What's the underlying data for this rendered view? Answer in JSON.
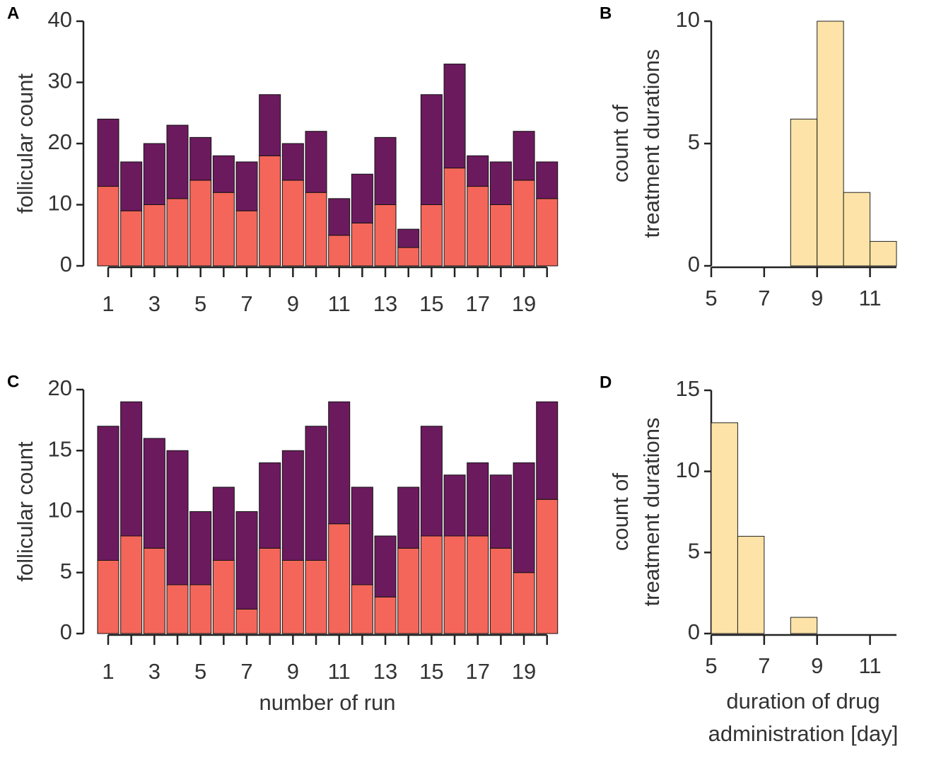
{
  "chart_data": [
    {
      "type": "bar",
      "label": "A",
      "ylabel": "follicular count",
      "stacked": true,
      "categories": [
        "1",
        null,
        "3",
        null,
        "5",
        null,
        "7",
        null,
        "9",
        null,
        "11",
        null,
        "13",
        null,
        "15",
        null,
        "17",
        null,
        "19",
        null
      ],
      "series": [
        {
          "color": "#f4665a",
          "values": [
            13,
            9,
            10,
            11,
            14,
            12,
            9,
            18,
            14,
            12,
            5,
            7,
            10,
            3,
            10,
            16,
            13,
            10,
            14,
            11
          ]
        },
        {
          "color": "#6c1a5e",
          "values": [
            11,
            8,
            10,
            12,
            7,
            6,
            8,
            10,
            6,
            10,
            6,
            8,
            11,
            3,
            18,
            17,
            5,
            7,
            8,
            6
          ]
        }
      ],
      "ylim": [
        0,
        40
      ],
      "yticks": [
        0,
        10,
        20,
        30,
        40
      ]
    },
    {
      "type": "histogram",
      "label": "B",
      "ylabel": [
        "count of",
        "treatment durations"
      ],
      "bins": [
        5,
        6,
        7,
        8,
        9,
        10,
        11,
        12
      ],
      "counts": [
        0,
        0,
        0,
        6,
        10,
        3,
        1
      ],
      "color": "#fde3a7",
      "xlim": [
        5,
        12
      ],
      "xticks": [
        5,
        7,
        9,
        11
      ],
      "ylim": [
        0,
        10
      ],
      "yticks": [
        0,
        5,
        10
      ]
    },
    {
      "type": "bar",
      "label": "C",
      "ylabel": "follicular count",
      "xlabel": "number of run",
      "stacked": true,
      "categories": [
        "1",
        null,
        "3",
        null,
        "5",
        null,
        "7",
        null,
        "9",
        null,
        "11",
        null,
        "13",
        null,
        "15",
        null,
        "17",
        null,
        "19",
        null
      ],
      "series": [
        {
          "color": "#f4665a",
          "values": [
            6,
            8,
            7,
            4,
            4,
            6,
            2,
            7,
            6,
            6,
            9,
            4,
            3,
            7,
            8,
            8,
            8,
            7,
            5,
            11
          ]
        },
        {
          "color": "#6c1a5e",
          "values": [
            11,
            11,
            9,
            11,
            6,
            6,
            8,
            7,
            9,
            11,
            10,
            8,
            5,
            5,
            9,
            5,
            6,
            6,
            9,
            8
          ]
        }
      ],
      "ylim": [
        0,
        20
      ],
      "yticks": [
        0,
        5,
        10,
        15,
        20
      ]
    },
    {
      "type": "histogram",
      "label": "D",
      "ylabel": [
        "count of",
        "treatment durations"
      ],
      "xlabel": [
        "duration of drug",
        "administration [day]"
      ],
      "bins": [
        5,
        6,
        7,
        8,
        9,
        10,
        11,
        12
      ],
      "counts": [
        13,
        6,
        0,
        1,
        0,
        0,
        0
      ],
      "color": "#fde3a7",
      "xlim": [
        5,
        12
      ],
      "xticks": [
        5,
        7,
        9,
        11
      ],
      "ylim": [
        0,
        15
      ],
      "yticks": [
        0,
        5,
        10,
        15
      ]
    }
  ]
}
